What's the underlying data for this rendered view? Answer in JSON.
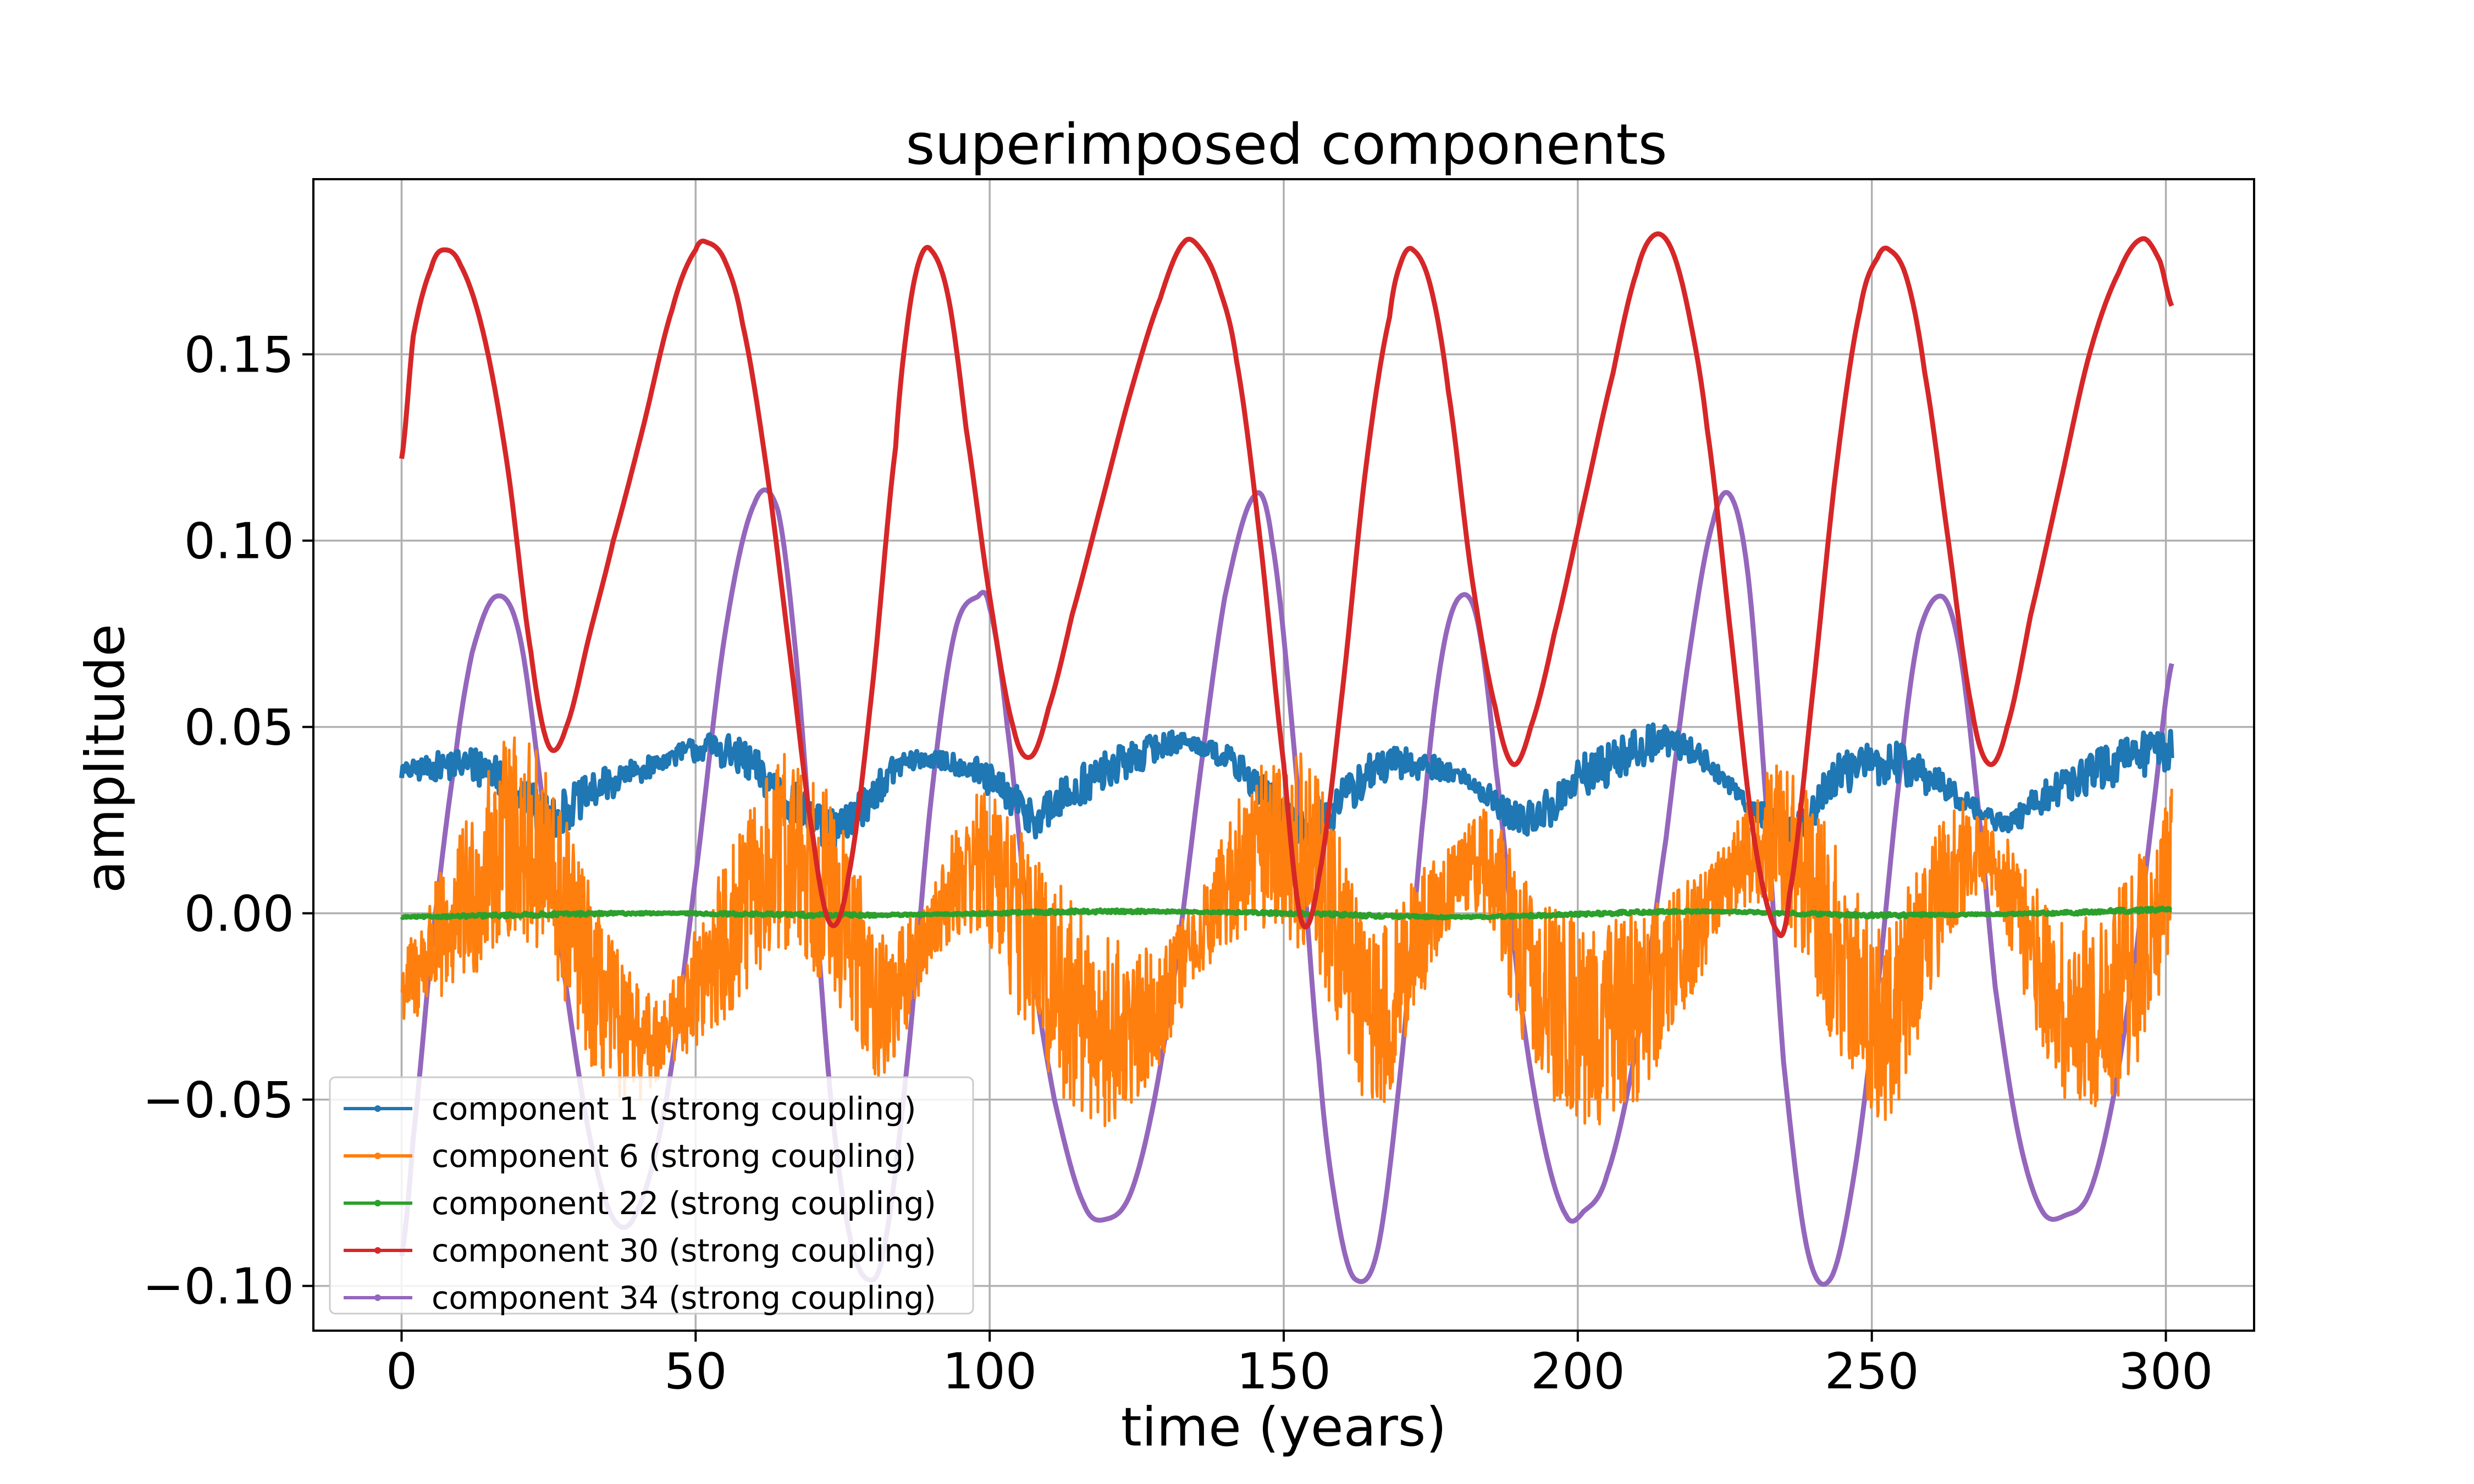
{
  "chart_data": {
    "type": "line",
    "title": "superimposed components",
    "xlabel": "time (years)",
    "ylabel": "amplitude",
    "xlim": [
      -15,
      315
    ],
    "ylim": [
      -0.112,
      0.197
    ],
    "xticks": [
      0,
      50,
      100,
      150,
      200,
      250,
      300
    ],
    "xtick_labels": [
      "0",
      "50",
      "100",
      "150",
      "200",
      "250",
      "300"
    ],
    "yticks": [
      -0.1,
      -0.05,
      0.0,
      0.05,
      0.1,
      0.15
    ],
    "ytick_labels": [
      "−0.10",
      "−0.05",
      "0.00",
      "0.05",
      "0.10",
      "0.15"
    ],
    "grid": true,
    "legend_position": "lower-left",
    "colors": {
      "component_1": "#1f77b4",
      "component_6": "#ff7f0e",
      "component_22": "#2ca02c",
      "component_30": "#d62728",
      "component_34": "#9467bd"
    },
    "series": [
      {
        "name": "component 34 (strong coupling)",
        "color": "#9467bd",
        "noise": 0,
        "x": [
          0,
          2,
          5,
          9,
          12,
          16,
          20,
          24,
          28,
          32,
          36,
          40,
          45,
          50,
          55,
          60,
          64,
          67,
          70,
          73,
          76,
          79,
          82,
          86,
          90,
          94,
          98,
          100,
          103,
          107,
          111,
          116,
          120,
          124,
          128,
          132,
          136,
          140,
          145,
          148,
          152,
          156,
          159,
          162,
          166,
          170,
          174,
          177,
          180,
          183,
          186,
          190,
          194,
          198,
          201,
          205,
          210,
          215,
          219,
          223,
          226,
          229,
          232,
          235,
          239,
          243,
          247,
          251,
          255,
          258,
          262,
          265,
          268,
          271,
          275,
          279,
          283,
          287,
          291,
          295,
          298,
          301
        ],
        "y": [
          -0.092,
          -0.06,
          -0.01,
          0.04,
          0.07,
          0.085,
          0.075,
          0.03,
          -0.02,
          -0.06,
          -0.082,
          -0.08,
          -0.05,
          0.01,
          0.075,
          0.11,
          0.108,
          0.07,
          0.01,
          -0.05,
          -0.085,
          -0.098,
          -0.09,
          -0.04,
          0.03,
          0.075,
          0.085,
          0.082,
          0.05,
          -0.01,
          -0.05,
          -0.078,
          -0.082,
          -0.075,
          -0.05,
          -0.01,
          0.04,
          0.085,
          0.112,
          0.1,
          0.04,
          -0.04,
          -0.08,
          -0.098,
          -0.09,
          -0.04,
          0.03,
          0.07,
          0.085,
          0.078,
          0.04,
          -0.02,
          -0.06,
          -0.081,
          -0.08,
          -0.07,
          -0.035,
          0.02,
          0.07,
          0.105,
          0.112,
          0.09,
          0.03,
          -0.04,
          -0.09,
          -0.098,
          -0.07,
          -0.02,
          0.04,
          0.075,
          0.085,
          0.07,
          0.03,
          -0.02,
          -0.06,
          -0.08,
          -0.081,
          -0.075,
          -0.05,
          -0.01,
          0.03,
          0.067
        ]
      },
      {
        "name": "component 1 (strong coupling)",
        "color": "#1f77b4",
        "noise": 0.006,
        "x": [
          0,
          10,
          16,
          20,
          25,
          30,
          34,
          40,
          50,
          56,
          62,
          68,
          73,
          78,
          85,
          95,
          102,
          108,
          112,
          116,
          122,
          132,
          140,
          145,
          150,
          154,
          159,
          165,
          172,
          180,
          186,
          190,
          195,
          200,
          214,
          220,
          226,
          233,
          236,
          240,
          245,
          255,
          262,
          268,
          273,
          278,
          285,
          295,
          301
        ],
        "y": [
          0.038,
          0.04,
          0.038,
          0.032,
          0.026,
          0.03,
          0.034,
          0.038,
          0.044,
          0.043,
          0.036,
          0.028,
          0.022,
          0.028,
          0.04,
          0.04,
          0.033,
          0.026,
          0.03,
          0.035,
          0.04,
          0.046,
          0.042,
          0.035,
          0.026,
          0.022,
          0.029,
          0.038,
          0.04,
          0.037,
          0.03,
          0.025,
          0.028,
          0.036,
          0.046,
          0.043,
          0.034,
          0.025,
          0.021,
          0.028,
          0.038,
          0.04,
          0.034,
          0.028,
          0.024,
          0.03,
          0.036,
          0.042,
          0.044
        ]
      },
      {
        "name": "component 6 (strong coupling)",
        "color": "#ff7f0e",
        "noise": 0.028,
        "x": [
          0,
          5,
          12,
          18,
          22,
          28,
          33,
          37,
          42,
          50,
          58,
          65,
          70,
          76,
          82,
          88,
          95,
          100,
          106,
          112,
          116,
          121,
          128,
          136,
          144,
          150,
          156,
          160,
          165,
          172,
          180,
          185,
          190,
          196,
          202,
          210,
          218,
          226,
          232,
          238,
          244,
          252,
          258,
          264,
          270,
          276,
          282,
          290,
          296,
          301
        ],
        "y": [
          -0.02,
          -0.01,
          0.005,
          0.02,
          0.018,
          0.0,
          -0.02,
          -0.03,
          -0.035,
          -0.02,
          0.0,
          0.015,
          0.012,
          -0.005,
          -0.025,
          -0.01,
          0.01,
          0.012,
          -0.005,
          -0.02,
          -0.028,
          -0.032,
          -0.025,
          -0.005,
          0.015,
          0.02,
          0.01,
          -0.005,
          -0.03,
          -0.01,
          0.01,
          0.012,
          -0.01,
          -0.025,
          -0.03,
          -0.025,
          -0.01,
          0.01,
          0.02,
          0.012,
          -0.01,
          -0.03,
          -0.01,
          0.012,
          0.015,
          -0.005,
          -0.025,
          -0.025,
          -0.01,
          0.01
        ]
      },
      {
        "name": "component 22 (strong coupling)",
        "color": "#2ca02c",
        "noise": 0.0005,
        "x": [
          0,
          40,
          80,
          120,
          150,
          180,
          220,
          250,
          280,
          301
        ],
        "y": [
          -0.001,
          0.0,
          -0.0005,
          0.0005,
          0.0,
          -0.001,
          0.0005,
          -0.0005,
          0.0,
          0.001
        ]
      },
      {
        "name": "component 30 (strong coupling)",
        "color": "#d62728",
        "noise": 0,
        "x": [
          0,
          2,
          5,
          7,
          10,
          14,
          18,
          22,
          25,
          28,
          32,
          36,
          41,
          46,
          50,
          52,
          55,
          58,
          62,
          66,
          70,
          73,
          76,
          80,
          84,
          86,
          88,
          90,
          93,
          96,
          100,
          104,
          107,
          110,
          114,
          119,
          124,
          129,
          133,
          136,
          139,
          142,
          146,
          150,
          153,
          156,
          160,
          164,
          168,
          170,
          172,
          175,
          178,
          182,
          186,
          189,
          192,
          196,
          201,
          206,
          210,
          213,
          216,
          219,
          222,
          226,
          230,
          234,
          236,
          240,
          244,
          248,
          251,
          253,
          256,
          259,
          263,
          267,
          270,
          273,
          277,
          282,
          287,
          292,
          296,
          299,
          301
        ],
        "y": [
          0.122,
          0.155,
          0.173,
          0.178,
          0.174,
          0.155,
          0.12,
          0.07,
          0.045,
          0.05,
          0.075,
          0.1,
          0.13,
          0.162,
          0.178,
          0.18,
          0.175,
          0.158,
          0.12,
          0.07,
          0.02,
          -0.003,
          0.01,
          0.06,
          0.125,
          0.158,
          0.175,
          0.178,
          0.165,
          0.13,
          0.085,
          0.05,
          0.042,
          0.055,
          0.08,
          0.11,
          0.14,
          0.165,
          0.18,
          0.178,
          0.168,
          0.148,
          0.1,
          0.04,
          -0.002,
          0.01,
          0.06,
          0.12,
          0.16,
          0.175,
          0.178,
          0.168,
          0.14,
          0.09,
          0.055,
          0.04,
          0.05,
          0.075,
          0.11,
          0.145,
          0.172,
          0.182,
          0.178,
          0.16,
          0.13,
          0.075,
          0.02,
          -0.005,
          0.005,
          0.06,
          0.12,
          0.162,
          0.176,
          0.178,
          0.17,
          0.145,
          0.1,
          0.055,
          0.04,
          0.05,
          0.08,
          0.115,
          0.15,
          0.172,
          0.181,
          0.175,
          0.163
        ]
      }
    ]
  }
}
